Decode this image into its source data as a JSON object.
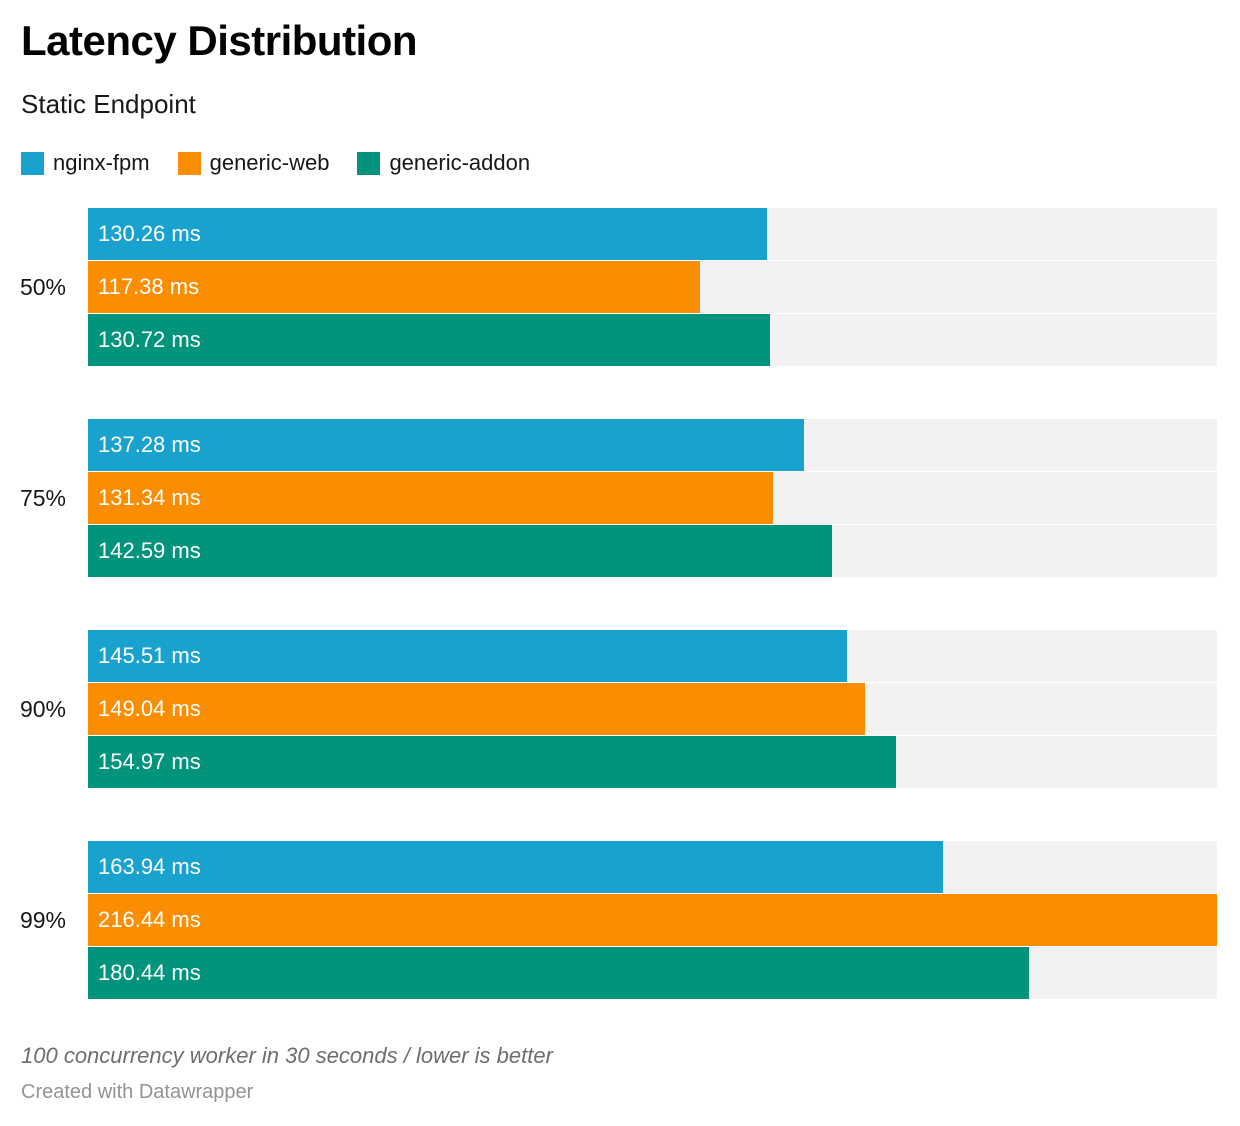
{
  "header": {
    "title": "Latency Distribution",
    "subtitle": "Static Endpoint"
  },
  "legend": {
    "items": [
      {
        "label": "nginx-fpm",
        "color": "#1aa2ce"
      },
      {
        "label": "generic-web",
        "color": "#fa8d00"
      },
      {
        "label": "generic-addon",
        "color": "#00947c"
      }
    ]
  },
  "chart_data": {
    "type": "bar",
    "orientation": "horizontal",
    "title": "Latency Distribution",
    "subtitle": "Static Endpoint",
    "unit": "ms",
    "axis_max": 216.44,
    "track_color": "#f2f2f2",
    "grid": false,
    "legend_position": "top",
    "categories": [
      "50%",
      "75%",
      "90%",
      "99%"
    ],
    "series": [
      {
        "name": "nginx-fpm",
        "color": "#1aa2ce",
        "values": [
          130.26,
          137.28,
          145.51,
          163.94
        ]
      },
      {
        "name": "generic-web",
        "color": "#fa8d00",
        "values": [
          117.38,
          131.34,
          149.04,
          216.44
        ]
      },
      {
        "name": "generic-addon",
        "color": "#00947c",
        "values": [
          130.72,
          142.59,
          154.97,
          180.44
        ]
      }
    ],
    "value_labels": [
      [
        "130.26 ms",
        "117.38 ms",
        "130.72 ms"
      ],
      [
        "137.28 ms",
        "131.34 ms",
        "142.59 ms"
      ],
      [
        "145.51 ms",
        "149.04 ms",
        "154.97 ms"
      ],
      [
        "163.94 ms",
        "216.44 ms",
        "180.44 ms"
      ]
    ]
  },
  "footer": {
    "note": "100 concurrency worker in 30 seconds / lower is better",
    "attribution": "Created with Datawrapper"
  }
}
